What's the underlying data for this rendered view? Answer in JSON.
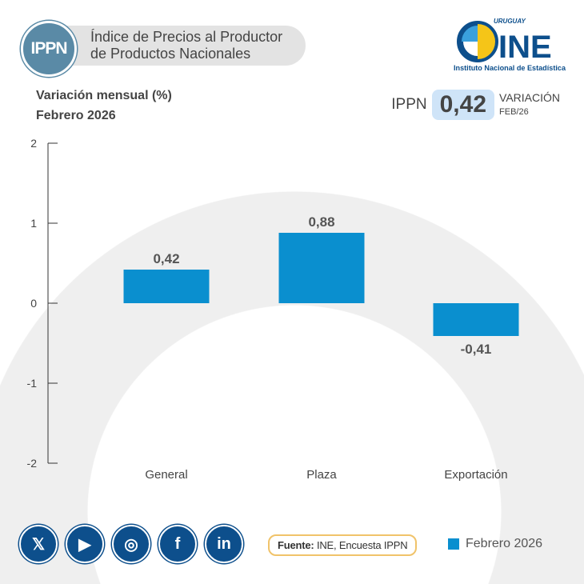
{
  "header": {
    "badge": "IPPN",
    "title_line1": "Índice de Precios al Productor",
    "title_line2": "de Productos Nacionales"
  },
  "logo": {
    "country": "URUGUAY",
    "name": "INE",
    "subtitle": "Instituto Nacional de Estadística"
  },
  "subtitle": {
    "line1": "Variación mensual (%)",
    "line2": "Febrero 2026"
  },
  "kpi": {
    "label": "IPPN",
    "value": "0,42",
    "side1": "VARIACIÓN",
    "side2": "FEB/26"
  },
  "chart_data": {
    "type": "bar",
    "categories": [
      "General",
      "Plaza",
      "Exportación"
    ],
    "values": [
      0.42,
      0.88,
      -0.41
    ],
    "value_labels": [
      "0,42",
      "0,88",
      "-0,41"
    ],
    "ylim": [
      -2,
      2
    ],
    "yticks": [
      "2",
      "1",
      "0",
      "-1",
      "-2"
    ],
    "legend": [
      "Febrero 2026"
    ],
    "legend_position": "bottom-right",
    "color": "#0a8fcf"
  },
  "footer": {
    "social": [
      "X",
      "YouTube",
      "Instagram",
      "Facebook",
      "LinkedIn"
    ],
    "source_label": "Fuente:",
    "source_text": " INE, Encuesta IPPN",
    "legend_label": "Febrero 2026"
  }
}
